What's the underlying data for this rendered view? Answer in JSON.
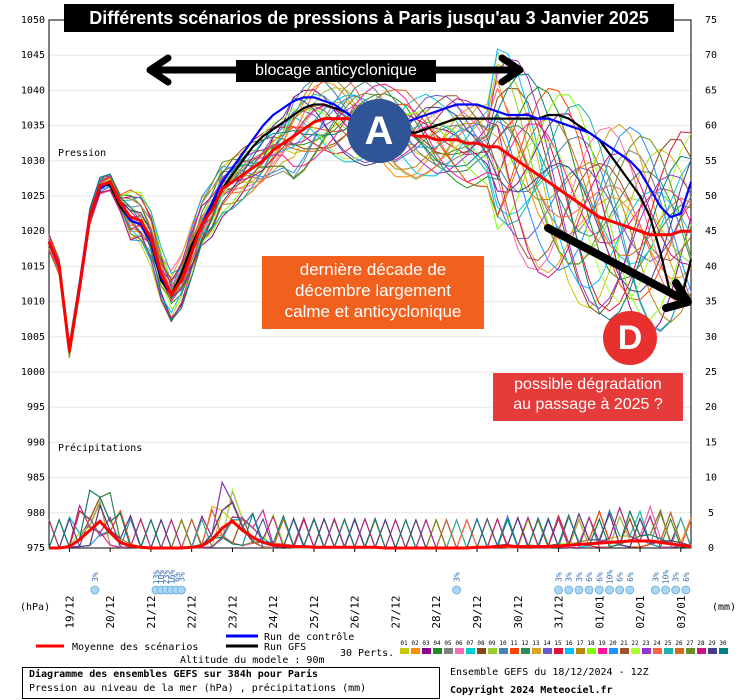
{
  "title": "Différents scénarios de pressions à Paris jusqu'au 3 Janvier 2025",
  "annotations": {
    "blocage": "blocage anticyclonique",
    "decade": "dernière décade de\ndécembre largement\ncalme et anticyclonique",
    "degradation": "possible dégradation\nau passage à 2025 ?",
    "a": "A",
    "d": "D"
  },
  "labels": {
    "pression": "Pression",
    "precipitations": "Précipitations",
    "hpa": "(hPa)",
    "mm": "(mm)"
  },
  "legend": {
    "moyenne": "Moyenne des scénarios",
    "controle": "Run de contrôle",
    "gfs": "Run GFS",
    "perts": "30 Perts.",
    "altitude": "Altitude du modele : 90m",
    "pert_ids": [
      "01",
      "02",
      "03",
      "04",
      "05",
      "06",
      "07",
      "08",
      "09",
      "10",
      "11",
      "12",
      "13",
      "14",
      "15",
      "16",
      "17",
      "18",
      "19",
      "20",
      "21",
      "22",
      "23",
      "24",
      "25",
      "26",
      "27",
      "28",
      "29",
      "30"
    ],
    "pert_colors": [
      "#c8c800",
      "#ff8c00",
      "#8b008b",
      "#228b22",
      "#808080",
      "#ff69b4",
      "#00ced1",
      "#8b4513",
      "#9acd32",
      "#4682b4",
      "#ff4500",
      "#2e8b57",
      "#daa520",
      "#6a5acd",
      "#dc143c",
      "#00bfff",
      "#b8860b",
      "#7fff00",
      "#ff1493",
      "#1e90ff",
      "#a0522d",
      "#adff2f",
      "#9932cc",
      "#ff6347",
      "#20b2aa",
      "#d2691e",
      "#6b8e23",
      "#c71585",
      "#483d8b",
      "#008080"
    ]
  },
  "footer": {
    "diagram": "Diagramme des ensembles GEFS sur 384h pour Paris",
    "pression": "Pression au niveau de la mer (hPa) , précipitations (mm)",
    "ensemble": "Ensemble GEFS du 18/12/2024 - 12Z",
    "copyright": "Copyright 2024 Meteociel.fr"
  },
  "colors": {
    "mean": "#ff0000",
    "control": "#0000ff",
    "gfs": "#000000",
    "annotation_orange": "#f2601d",
    "annotation_red": "#e53b3b",
    "anticyclone": "#2f5597",
    "depression": "#e8302e"
  },
  "chart_data": {
    "type": "line",
    "x": [
      "19/12",
      "20/12",
      "21/12",
      "22/12",
      "23/12",
      "24/12",
      "25/12",
      "26/12",
      "27/12",
      "28/12",
      "29/12",
      "30/12",
      "31/12",
      "01/01",
      "02/01",
      "03/01"
    ],
    "y_left": {
      "label": "(hPa)",
      "ticks": [
        975,
        980,
        985,
        990,
        995,
        1000,
        1005,
        1010,
        1015,
        1020,
        1025,
        1030,
        1035,
        1040,
        1045,
        1050
      ],
      "range": [
        975,
        1050
      ]
    },
    "y_right": {
      "label": "(mm)",
      "ticks": [
        0,
        5,
        10,
        15,
        20,
        25,
        30,
        35,
        40,
        45,
        50,
        55,
        60,
        65,
        70,
        75
      ],
      "range": [
        0,
        75
      ]
    },
    "step_hours": 6,
    "pressure_mean": [
      1018.5,
      1015,
      1003,
      1012,
      1022,
      1026.5,
      1027,
      1024,
      1022,
      1021.5,
      1019,
      1014,
      1011,
      1013,
      1017,
      1021,
      1023,
      1026,
      1027,
      1028,
      1029,
      1030,
      1031.5,
      1032.5,
      1033.5,
      1034.5,
      1035.5,
      1036,
      1036,
      1036,
      1036,
      1035.5,
      1035,
      1034.5,
      1034,
      1034,
      1033.5,
      1033.5,
      1033,
      1033,
      1033,
      1032.5,
      1032.5,
      1032,
      1032,
      1031,
      1030,
      1029,
      1028,
      1027,
      1026,
      1025,
      1024,
      1023,
      1022,
      1021.5,
      1021,
      1020.5,
      1020,
      1019.5,
      1019.5,
      1019.5,
      1020,
      1020
    ],
    "pressure_control": [
      1018.5,
      1015,
      1003,
      1012,
      1022,
      1026,
      1027,
      1024,
      1021.5,
      1021,
      1018.5,
      1013.5,
      1011,
      1013,
      1017,
      1021,
      1024,
      1027,
      1029,
      1031,
      1033,
      1035,
      1036.5,
      1037.5,
      1038.5,
      1039,
      1039,
      1038.5,
      1038,
      1037,
      1036,
      1035.5,
      1035,
      1035,
      1035,
      1035.5,
      1036,
      1036.5,
      1037,
      1037.5,
      1038,
      1038,
      1038,
      1037.5,
      1037,
      1036.5,
      1036.5,
      1036.5,
      1036,
      1036,
      1035.5,
      1035,
      1034.5,
      1034,
      1033,
      1032,
      1031,
      1030,
      1028.5,
      1026,
      1023.5,
      1022,
      1022.5,
      1027
    ],
    "pressure_gfs": [
      1018.5,
      1015,
      1003,
      1012,
      1022,
      1026.5,
      1026.5,
      1023.5,
      1021.5,
      1021,
      1018.5,
      1013,
      1011,
      1014,
      1018,
      1021,
      1023.5,
      1026,
      1028,
      1030,
      1032,
      1033.5,
      1034.5,
      1035.5,
      1036.5,
      1037.5,
      1038,
      1038,
      1037.5,
      1037,
      1036,
      1035.5,
      1035,
      1034.5,
      1034,
      1034,
      1034,
      1034.5,
      1035,
      1035.5,
      1036,
      1036,
      1036,
      1036,
      1036,
      1036,
      1036,
      1036,
      1036,
      1036.5,
      1036.5,
      1036,
      1035,
      1034,
      1033,
      1031,
      1029,
      1027,
      1025,
      1022,
      1017,
      1011,
      1010,
      1016
    ],
    "precip_mean": [
      0,
      0,
      0.2,
      1.2,
      2.5,
      3.8,
      2.2,
      0.8,
      0.3,
      0.1,
      0,
      0,
      0,
      0,
      0.1,
      0.3,
      1.2,
      2.8,
      3.8,
      2.5,
      1.5,
      0.8,
      0.4,
      0.3,
      0.2,
      0.2,
      0.1,
      0.1,
      0.1,
      0.1,
      0.1,
      0.1,
      0.1,
      0,
      0,
      0,
      0,
      0,
      0,
      0,
      0,
      0,
      0.1,
      0.1,
      0.2,
      0.3,
      0.2,
      0.2,
      0.2,
      0.2,
      0.3,
      0.4,
      0.5,
      0.6,
      0.7,
      0.8,
      0.9,
      1.0,
      1.0,
      1.0,
      0.8,
      0.6,
      0.4,
      0.2
    ],
    "snow_labels": [
      {
        "x_index": 4.5,
        "text": "3%"
      },
      {
        "x_index": 10.5,
        "text": "13%"
      },
      {
        "x_index": 11.0,
        "text": "10%"
      },
      {
        "x_index": 11.5,
        "text": "23%"
      },
      {
        "x_index": 12.0,
        "text": "16%"
      },
      {
        "x_index": 12.5,
        "text": "6%"
      },
      {
        "x_index": 13.0,
        "text": "3%"
      },
      {
        "x_index": 40.0,
        "text": "3%"
      },
      {
        "x_index": 50.0,
        "text": "3%"
      },
      {
        "x_index": 51.0,
        "text": "3%"
      },
      {
        "x_index": 52.0,
        "text": "3%"
      },
      {
        "x_index": 53.0,
        "text": "6%"
      },
      {
        "x_index": 54.0,
        "text": "6%"
      },
      {
        "x_index": 55.0,
        "text": "10%"
      },
      {
        "x_index": 56.0,
        "text": "6%"
      },
      {
        "x_index": 57.0,
        "text": "6%"
      },
      {
        "x_index": 59.5,
        "text": "3%"
      },
      {
        "x_index": 60.5,
        "text": "10%"
      },
      {
        "x_index": 61.5,
        "text": "3%"
      },
      {
        "x_index": 62.5,
        "text": "6%"
      }
    ]
  }
}
